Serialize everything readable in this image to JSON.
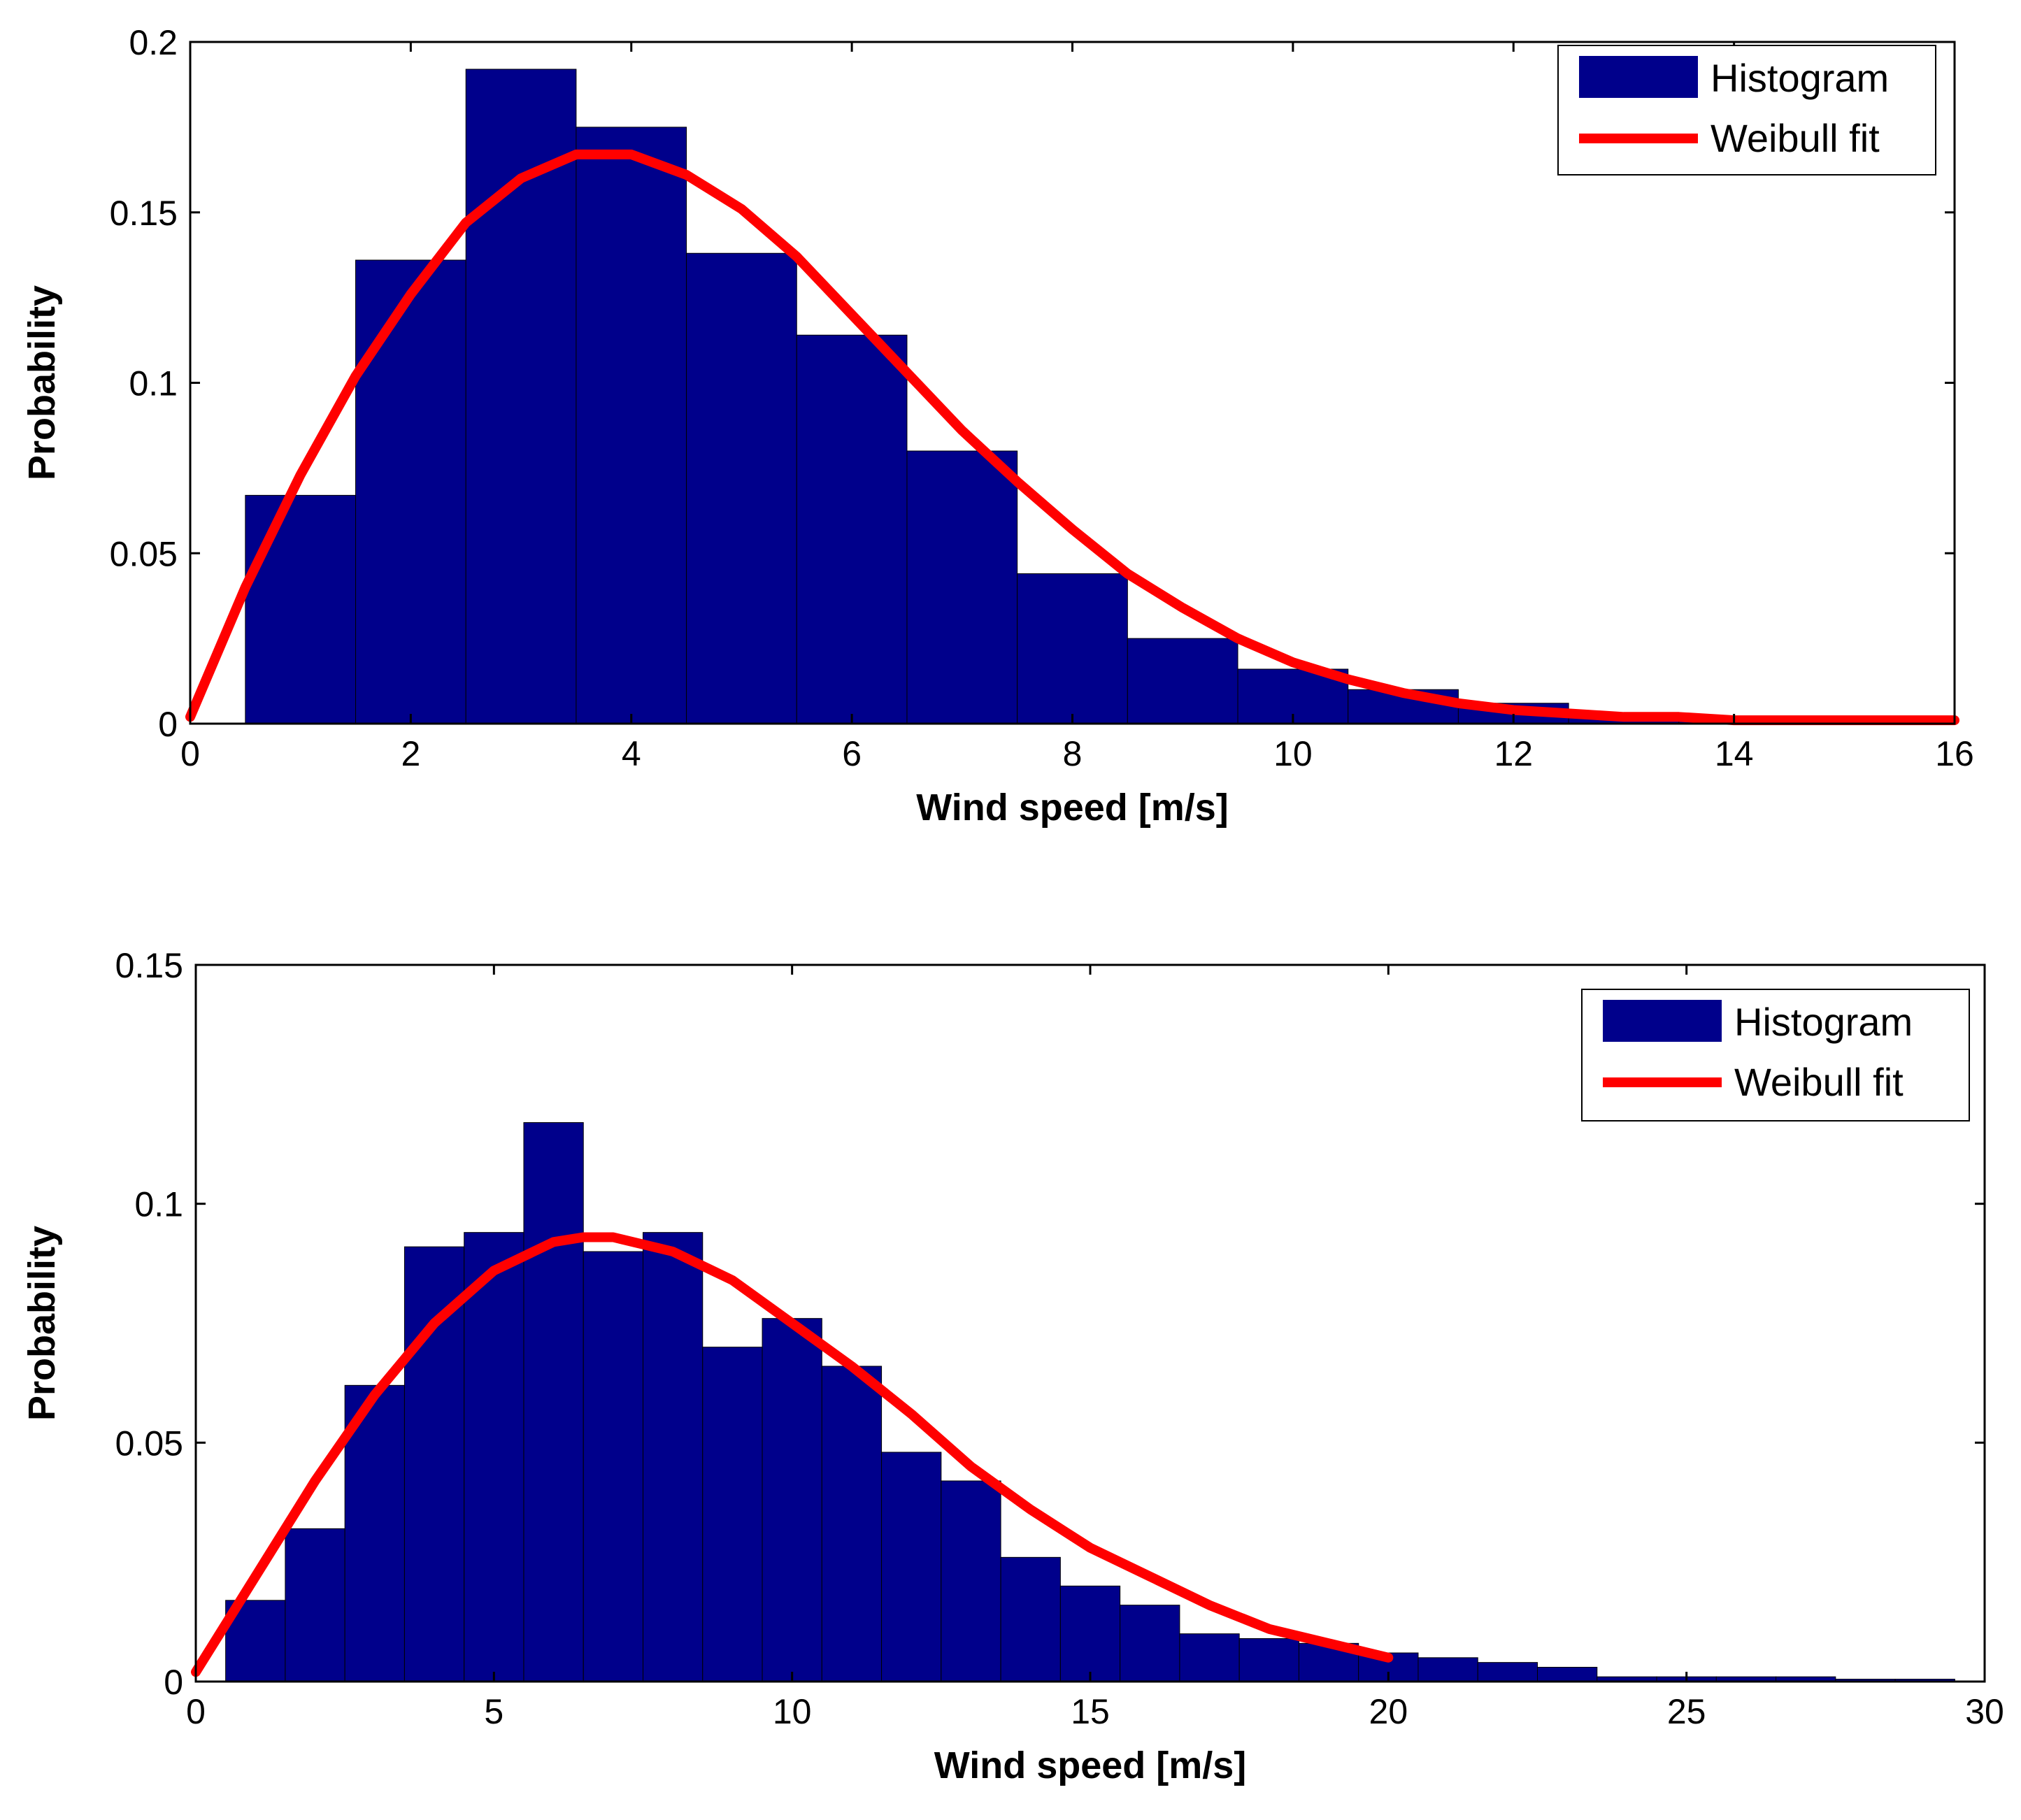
{
  "colors": {
    "bar": "#00008B",
    "fit": "#FF0000",
    "axis": "#000000",
    "background": "#FFFFFF"
  },
  "chart_data": [
    {
      "type": "bar",
      "xlabel": "Wind speed [m/s]",
      "ylabel": "Probability",
      "xlim": [
        0,
        16
      ],
      "ylim": [
        0,
        0.2
      ],
      "xticks": [
        0,
        2,
        4,
        6,
        8,
        10,
        12,
        14,
        16
      ],
      "yticks": [
        0,
        0.05,
        0.1,
        0.15,
        0.2
      ],
      "ytick_labels": [
        "0",
        "0.05",
        "0.1",
        "0.15",
        "0.2"
      ],
      "legend_position": "top-right",
      "grid": false,
      "bin_width": 1,
      "series": [
        {
          "name": "Histogram",
          "kind": "bar",
          "x": [
            1,
            2,
            3,
            4,
            5,
            6,
            7,
            8,
            9,
            10,
            11,
            12,
            13,
            14,
            15
          ],
          "values": [
            0.067,
            0.136,
            0.192,
            0.175,
            0.138,
            0.114,
            0.08,
            0.044,
            0.025,
            0.016,
            0.01,
            0.006,
            0.003,
            0.001,
            0.0005
          ]
        },
        {
          "name": "Weibull fit",
          "kind": "line",
          "x": [
            0,
            0.5,
            1,
            1.5,
            2,
            2.5,
            3,
            3.5,
            4,
            4.5,
            5,
            5.5,
            6,
            6.5,
            7,
            7.5,
            8,
            8.5,
            9,
            9.5,
            10,
            10.5,
            11,
            11.5,
            12,
            12.5,
            13,
            13.5,
            14,
            14.5,
            15,
            15.5,
            16
          ],
          "values": [
            0.002,
            0.04,
            0.073,
            0.102,
            0.126,
            0.147,
            0.16,
            0.167,
            0.167,
            0.161,
            0.151,
            0.137,
            0.12,
            0.103,
            0.086,
            0.071,
            0.057,
            0.044,
            0.034,
            0.025,
            0.018,
            0.013,
            0.009,
            0.006,
            0.004,
            0.003,
            0.002,
            0.002,
            0.001,
            0.001,
            0.001,
            0.001,
            0.001
          ]
        }
      ]
    },
    {
      "type": "bar",
      "xlabel": "Wind speed [m/s]",
      "ylabel": "Probability",
      "xlim": [
        0,
        30
      ],
      "ylim": [
        0,
        0.15
      ],
      "xticks": [
        0,
        5,
        10,
        15,
        20,
        25,
        30
      ],
      "yticks": [
        0,
        0.05,
        0.1,
        0.15
      ],
      "ytick_labels": [
        "0",
        "0.05",
        "0.1",
        "0.15"
      ],
      "legend_position": "top-right",
      "grid": false,
      "bin_width": 1,
      "series": [
        {
          "name": "Histogram",
          "kind": "bar",
          "x": [
            1,
            2,
            3,
            4,
            5,
            6,
            7,
            8,
            9,
            10,
            11,
            12,
            13,
            14,
            15,
            16,
            17,
            18,
            19,
            20,
            21,
            22,
            23,
            24,
            25,
            26,
            27,
            28,
            29
          ],
          "values": [
            0.017,
            0.032,
            0.062,
            0.091,
            0.094,
            0.117,
            0.09,
            0.094,
            0.07,
            0.076,
            0.066,
            0.048,
            0.042,
            0.026,
            0.02,
            0.016,
            0.01,
            0.009,
            0.008,
            0.006,
            0.005,
            0.004,
            0.003,
            0.001,
            0.001,
            0.001,
            0.001,
            0.0005,
            0.0005
          ]
        },
        {
          "name": "Weibull fit",
          "kind": "line",
          "x": [
            0,
            1,
            2,
            3,
            4,
            5,
            6,
            6.5,
            7,
            8,
            9,
            10,
            11,
            12,
            13,
            14,
            15,
            16,
            17,
            18,
            19,
            20
          ],
          "values": [
            0.002,
            0.022,
            0.042,
            0.06,
            0.075,
            0.086,
            0.092,
            0.093,
            0.093,
            0.09,
            0.084,
            0.075,
            0.066,
            0.056,
            0.045,
            0.036,
            0.028,
            0.022,
            0.016,
            0.011,
            0.008,
            0.005
          ]
        }
      ]
    }
  ]
}
